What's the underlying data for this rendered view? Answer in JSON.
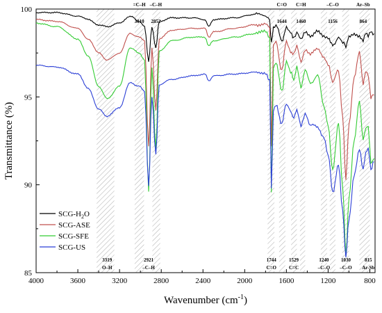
{
  "chart_data": {
    "type": "line",
    "xlabel": "Wavenumber (cm",
    "xlabel_sup": "-1",
    "xlabel_end": ")",
    "ylabel": "Transmittance (%)",
    "xlim": [
      4000,
      750
    ],
    "ylim": [
      85,
      100
    ],
    "x_ticks": [
      4000,
      3600,
      3200,
      2800,
      2400,
      2000,
      1600,
      1200,
      800
    ],
    "y_ticks": [
      85,
      90,
      95,
      100
    ],
    "legend_position": "center-left",
    "bands": [
      {
        "from": 3420,
        "to": 3250
      },
      {
        "from": 3055,
        "to": 2965
      },
      {
        "from": 2885,
        "to": 2810
      },
      {
        "from": 1780,
        "to": 1715
      },
      {
        "from": 1670,
        "to": 1610
      },
      {
        "from": 1555,
        "to": 1500
      },
      {
        "from": 1470,
        "to": 1420
      },
      {
        "from": 1270,
        "to": 1210
      },
      {
        "from": 1185,
        "to": 1130
      },
      {
        "from": 1065,
        "to": 1000
      },
      {
        "from": 900,
        "to": 800
      }
    ],
    "top_annotations": [
      {
        "x": 3010,
        "line1": "=C–H",
        "line2": "3010"
      },
      {
        "x": 2852,
        "line1": "–C–H",
        "line2": "2852"
      },
      {
        "x": 1644,
        "line1": "C=O",
        "line2": "1644"
      },
      {
        "x": 1460,
        "line1": "C=H",
        "line2": "1460"
      },
      {
        "x": 1156,
        "line1": "–C–O",
        "line2": "1156"
      },
      {
        "x": 864,
        "line1": "Ar–Sb",
        "line2": "864"
      }
    ],
    "bottom_annotations": [
      {
        "x": 3319,
        "line1": "3319",
        "line2": "O–H"
      },
      {
        "x": 2921,
        "line1": "2921",
        "line2": "–C–H"
      },
      {
        "x": 1744,
        "line1": "1744",
        "line2": "C=O"
      },
      {
        "x": 1529,
        "line1": "1529",
        "line2": "C=C"
      },
      {
        "x": 1240,
        "line1": "1240",
        "line2": "–C–O"
      },
      {
        "x": 1030,
        "line1": "1030",
        "line2": "–C–O"
      },
      {
        "x": 815,
        "line1": "815",
        "line2": "Ar-Sb"
      }
    ],
    "series": [
      {
        "name": "SCG-H",
        "name_sub": "2",
        "name_end": "O",
        "color": "#000000",
        "x": [
          4000,
          3800,
          3600,
          3500,
          3400,
          3319,
          3200,
          3100,
          3010,
          2960,
          2921,
          2890,
          2852,
          2820,
          2700,
          2500,
          2380,
          2345,
          2300,
          2100,
          1900,
          1800,
          1760,
          1744,
          1725,
          1700,
          1644,
          1600,
          1560,
          1529,
          1500,
          1460,
          1420,
          1370,
          1300,
          1240,
          1200,
          1156,
          1100,
          1060,
          1030,
          1000,
          950,
          900,
          864,
          840,
          815,
          790,
          760
        ],
        "y": [
          99.8,
          99.8,
          99.6,
          99.4,
          99.1,
          99.0,
          99.2,
          99.6,
          99.3,
          99.0,
          97.0,
          99.0,
          97.8,
          99.3,
          99.5,
          99.5,
          99.4,
          99.0,
          99.4,
          99.5,
          99.7,
          99.6,
          99.4,
          98.0,
          99.0,
          99.1,
          98.2,
          98.9,
          98.6,
          98.4,
          98.7,
          98.3,
          98.7,
          98.5,
          98.7,
          98.5,
          98.4,
          97.9,
          98.4,
          98.1,
          97.9,
          98.4,
          98.6,
          98.5,
          98.2,
          98.6,
          98.4,
          98.7,
          98.6
        ]
      },
      {
        "name": "SCG-ASE",
        "color": "#c0504d",
        "x": [
          4000,
          3800,
          3600,
          3500,
          3400,
          3319,
          3200,
          3100,
          3010,
          2960,
          2921,
          2890,
          2852,
          2820,
          2700,
          2500,
          2380,
          2345,
          2300,
          2100,
          1900,
          1800,
          1760,
          1744,
          1725,
          1700,
          1644,
          1600,
          1560,
          1529,
          1500,
          1460,
          1420,
          1370,
          1300,
          1240,
          1200,
          1156,
          1100,
          1060,
          1030,
          1000,
          950,
          900,
          864,
          840,
          815,
          790,
          760
        ],
        "y": [
          99.4,
          99.3,
          98.9,
          98.3,
          97.5,
          97.1,
          97.5,
          98.6,
          98.4,
          98.2,
          92.2,
          97.8,
          94.2,
          98.3,
          98.8,
          98.9,
          98.9,
          98.4,
          98.7,
          98.9,
          99.1,
          99.2,
          99.0,
          92.2,
          97.9,
          98.1,
          96.5,
          98.2,
          97.6,
          97.4,
          97.9,
          97.0,
          97.7,
          97.4,
          97.8,
          97.2,
          96.8,
          95.9,
          96.5,
          93.8,
          90.3,
          93.5,
          96.1,
          97.5,
          95.7,
          96.5,
          96.3,
          95.0,
          95.1
        ]
      },
      {
        "name": "SCG-SFE",
        "color": "#33cc33",
        "x": [
          4000,
          3800,
          3600,
          3500,
          3400,
          3319,
          3200,
          3100,
          3010,
          2960,
          2921,
          2890,
          2852,
          2820,
          2700,
          2500,
          2380,
          2345,
          2300,
          2100,
          1900,
          1800,
          1760,
          1744,
          1725,
          1700,
          1644,
          1600,
          1560,
          1529,
          1500,
          1460,
          1420,
          1370,
          1300,
          1240,
          1200,
          1156,
          1100,
          1060,
          1030,
          1000,
          950,
          900,
          864,
          840,
          815,
          790,
          760
        ],
        "y": [
          99.2,
          99.0,
          98.3,
          97.3,
          95.6,
          94.9,
          95.6,
          97.8,
          97.5,
          97.1,
          89.6,
          96.7,
          92.0,
          97.6,
          98.2,
          98.4,
          98.4,
          97.9,
          98.2,
          98.4,
          98.6,
          98.7,
          98.3,
          89.5,
          96.7,
          97.0,
          95.3,
          97.0,
          96.4,
          96.0,
          96.7,
          95.5,
          96.5,
          95.8,
          96.2,
          94.5,
          93.4,
          90.8,
          93.6,
          89.8,
          86.0,
          89.2,
          92.5,
          94.8,
          92.6,
          93.2,
          93.3,
          91.2,
          91.5
        ]
      },
      {
        "name": "SCG-US",
        "color": "#2b3fd6",
        "x": [
          4000,
          3800,
          3600,
          3500,
          3400,
          3319,
          3200,
          3100,
          3010,
          2960,
          2921,
          2890,
          2852,
          2820,
          2700,
          2500,
          2380,
          2345,
          2300,
          2100,
          1900,
          1800,
          1760,
          1744,
          1725,
          1700,
          1644,
          1600,
          1560,
          1529,
          1500,
          1460,
          1420,
          1370,
          1300,
          1240,
          1200,
          1156,
          1100,
          1060,
          1030,
          1000,
          950,
          900,
          864,
          840,
          815,
          790,
          760
        ],
        "y": [
          96.8,
          96.7,
          96.3,
          95.5,
          94.3,
          93.9,
          94.4,
          95.8,
          95.6,
          95.3,
          89.9,
          95.0,
          91.7,
          95.7,
          96.0,
          96.2,
          96.3,
          95.9,
          96.2,
          96.3,
          96.4,
          96.4,
          96.0,
          89.8,
          94.2,
          94.5,
          93.5,
          94.6,
          94.2,
          93.8,
          94.3,
          93.4,
          94.1,
          93.4,
          93.3,
          92.7,
          91.7,
          89.6,
          91.1,
          88.4,
          85.9,
          88.1,
          90.6,
          92.0,
          90.8,
          91.8,
          92.1,
          90.9,
          91.3
        ]
      }
    ]
  }
}
